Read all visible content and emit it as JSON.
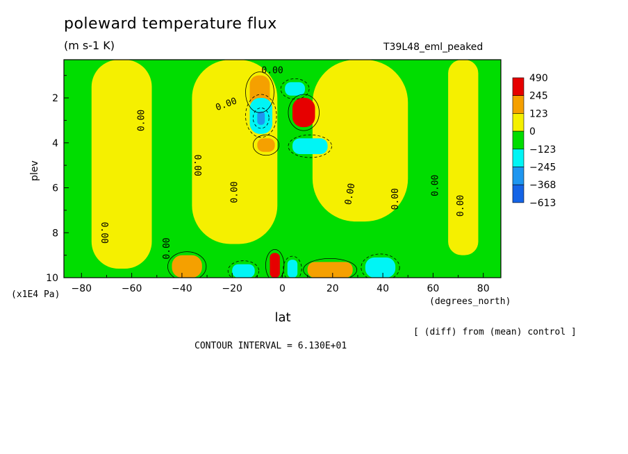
{
  "chart_data": {
    "type": "heatmap",
    "title": "poleward temperature flux",
    "units": "(m s-1 K)",
    "run_label": "T39L48_eml_peaked",
    "xlabel": "lat",
    "xunit": "(degrees_north)",
    "ylabel": "plev",
    "yunit": "(x1E4 Pa)",
    "x_ticks": [
      "-80",
      "-60",
      "-40",
      "-20",
      "0",
      "20",
      "40",
      "60",
      "80"
    ],
    "y_ticks": [
      "2",
      "4",
      "6",
      "8",
      "10"
    ],
    "xlim": [
      -87,
      87
    ],
    "ylim": [
      10,
      0.3
    ],
    "contour_interval_text": "CONTOUR INTERVAL = 6.130E+01",
    "note": "[ (diff) from (mean) control ]",
    "contour_labels": [
      "0.00"
    ],
    "colorbar": {
      "levels": [
        "490",
        "245",
        "123",
        "0",
        "−123",
        "−245",
        "−368",
        "−613"
      ],
      "colors": [
        "#e60000",
        "#f5a000",
        "#f5f000",
        "#00dd00",
        "#00f5f5",
        "#1e96f0",
        "#1464e6"
      ]
    },
    "regions": [
      {
        "level": "0 to 123",
        "lat": [
          -76,
          -52
        ],
        "plev": [
          0.3,
          9.6
        ]
      },
      {
        "level": "0 to 123",
        "lat": [
          -36,
          -2
        ],
        "plev": [
          0.3,
          8.5
        ]
      },
      {
        "level": "0 to 123",
        "lat": [
          12,
          50
        ],
        "plev": [
          0.3,
          7.5
        ]
      },
      {
        "level": "0 to 123",
        "lat": [
          66,
          78
        ],
        "plev": [
          0.3,
          9.0
        ]
      },
      {
        "level": "123 to 245",
        "lat": [
          -13,
          -5
        ],
        "plev": [
          1.0,
          2.5
        ]
      },
      {
        "level": "123 to 245",
        "lat": [
          -10,
          -3
        ],
        "plev": [
          3.8,
          4.4
        ]
      },
      {
        "level": "123 to 245",
        "lat": [
          -44,
          -32
        ],
        "plev": [
          9.0,
          10
        ]
      },
      {
        "level": "123 to 245",
        "lat": [
          10,
          28
        ],
        "plev": [
          9.3,
          10
        ]
      },
      {
        "level": "245 to 490",
        "lat": [
          4,
          13
        ],
        "plev": [
          2.0,
          3.3
        ]
      },
      {
        "level": "245 to 490",
        "lat": [
          -5,
          -1
        ],
        "plev": [
          8.9,
          10
        ]
      },
      {
        "level": "-245 to -123",
        "lat": [
          -13,
          -4
        ],
        "plev": [
          2.0,
          3.6
        ]
      },
      {
        "level": "-245 to -123",
        "lat": [
          4,
          18
        ],
        "plev": [
          3.8,
          4.5
        ]
      },
      {
        "level": "-245 to -123",
        "lat": [
          1,
          9
        ],
        "plev": [
          1.3,
          1.9
        ]
      },
      {
        "level": "-245 to -123",
        "lat": [
          -20,
          -11
        ],
        "plev": [
          9.4,
          10
        ]
      },
      {
        "level": "-245 to -123",
        "lat": [
          33,
          45
        ],
        "plev": [
          9.1,
          10
        ]
      },
      {
        "level": "-245 to -123",
        "lat": [
          2,
          6
        ],
        "plev": [
          9.2,
          10
        ]
      },
      {
        "level": "-368 to -245",
        "lat": [
          -10,
          -7
        ],
        "plev": [
          2.6,
          3.2
        ]
      }
    ]
  }
}
